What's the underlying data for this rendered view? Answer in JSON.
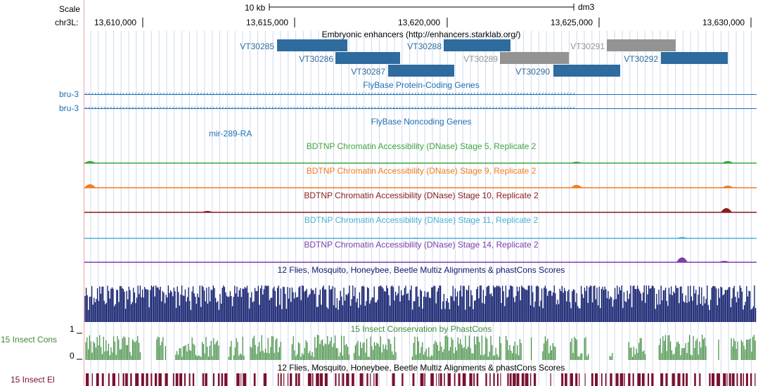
{
  "ruler": {
    "scale_label": "Scale",
    "scale_bar_text": "10 kb",
    "assembly": "dm3",
    "chrom_label": "chr3L:",
    "positions": [
      "13,610,000",
      "13,615,000",
      "13,620,000",
      "13,625,000",
      "13,630,000"
    ]
  },
  "tracks": {
    "enhancers": {
      "title": "Embryonic enhancers (http://enhancers.starklab.org/)",
      "features": [
        {
          "name": "VT30285",
          "color": "#2e6b9e"
        },
        {
          "name": "VT30286",
          "color": "#2e6b9e"
        },
        {
          "name": "VT30287",
          "color": "#2e6b9e"
        },
        {
          "name": "VT30288",
          "color": "#2e6b9e"
        },
        {
          "name": "VT30289",
          "color": "#939393"
        },
        {
          "name": "VT30290",
          "color": "#2e6b9e"
        },
        {
          "name": "VT30291",
          "color": "#939393"
        },
        {
          "name": "VT30292",
          "color": "#2e6b9e"
        }
      ]
    },
    "coding_genes": {
      "title": "FlyBase Protein-Coding Genes",
      "genes": [
        "bru-3",
        "bru-3"
      ],
      "color": "#1e6fb5"
    },
    "noncoding_genes": {
      "title": "FlyBase Noncoding Genes",
      "genes": [
        "mir-289-RA"
      ],
      "color": "#1e6fb5"
    },
    "dnase": [
      {
        "title": "BDTNP Chromatin Accessibility (DNase) Stage 5, Replicate 2",
        "color": "#3ca53c"
      },
      {
        "title": "BDTNP Chromatin Accessibility (DNase) Stage 9, Replicate 2",
        "color": "#f07b1e"
      },
      {
        "title": "BDTNP Chromatin Accessibility (DNase) Stage 10, Replicate 2",
        "color": "#8b1a1a"
      },
      {
        "title": "BDTNP Chromatin Accessibility (DNase) Stage 11, Replicate 2",
        "color": "#4ab0d8"
      },
      {
        "title": "BDTNP Chromatin Accessibility (DNase) Stage 14, Replicate 2",
        "color": "#7a3fa8"
      }
    ],
    "multiz": {
      "title": "12 Flies, Mosquito, Honeybee, Beetle Multiz Alignments & phastCons Scores",
      "color": "#0d1a6b"
    },
    "insect_cons": {
      "title": "15 Insect Conservation by PhastCons",
      "side_label": "15 Insect Cons",
      "y_max": "1",
      "y_min": "0",
      "color": "#3e8b3e"
    },
    "insect_el": {
      "title": "12 Flies, Mosquito, Honeybee, Beetle Multiz Alignments & phastCons Scores",
      "side_label": "15 Insect El",
      "color": "#7a1030"
    }
  }
}
